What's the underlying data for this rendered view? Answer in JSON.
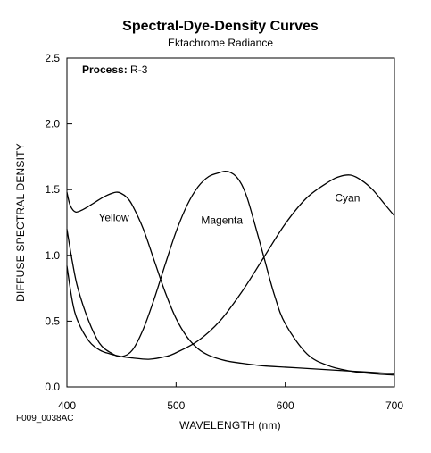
{
  "chart_data": {
    "type": "line",
    "title": "Spectral-Dye-Density Curves",
    "subtitle": "Ektachrome Radiance",
    "annotation": {
      "label": "Process:",
      "value": " R-3"
    },
    "xlabel": "WAVELENGTH (nm)",
    "ylabel": "DIFFUSE SPECTRAL DENSITY",
    "xlim": [
      400,
      700
    ],
    "ylim": [
      0.0,
      2.5
    ],
    "x_ticks": [
      400,
      500,
      600,
      700
    ],
    "y_ticks": [
      0.0,
      0.5,
      1.0,
      1.5,
      2.0,
      2.5
    ],
    "x_tick_labels": [
      "400",
      "500",
      "600",
      "700"
    ],
    "y_tick_labels": [
      "0.0",
      "0.5",
      "1.0",
      "1.5",
      "2.0",
      "2.5"
    ],
    "grid": false,
    "figure_code": "F009_0038AC",
    "series": [
      {
        "name": "Yellow",
        "color": "#000000",
        "x": [
          400,
          403,
          408,
          415,
          425,
          435,
          445,
          450,
          455,
          460,
          470,
          480,
          490,
          500,
          510,
          520,
          530,
          545,
          560,
          580,
          600,
          620,
          640,
          660,
          680,
          700
        ],
        "y": [
          1.48,
          1.38,
          1.33,
          1.35,
          1.4,
          1.45,
          1.48,
          1.47,
          1.44,
          1.38,
          1.2,
          0.96,
          0.72,
          0.52,
          0.38,
          0.29,
          0.24,
          0.2,
          0.18,
          0.16,
          0.15,
          0.14,
          0.13,
          0.12,
          0.11,
          0.1
        ]
      },
      {
        "name": "Magenta",
        "color": "#000000",
        "x": [
          400,
          405,
          410,
          420,
          430,
          440,
          450,
          460,
          470,
          480,
          490,
          500,
          510,
          520,
          530,
          540,
          545,
          550,
          555,
          560,
          565,
          570,
          580,
          590,
          600,
          620,
          640,
          660,
          680,
          700
        ],
        "y": [
          1.2,
          0.95,
          0.75,
          0.5,
          0.33,
          0.26,
          0.23,
          0.28,
          0.44,
          0.67,
          0.93,
          1.18,
          1.38,
          1.52,
          1.6,
          1.63,
          1.64,
          1.63,
          1.6,
          1.54,
          1.44,
          1.3,
          1.0,
          0.7,
          0.48,
          0.25,
          0.16,
          0.12,
          0.1,
          0.09
        ]
      },
      {
        "name": "Cyan",
        "color": "#000000",
        "x": [
          400,
          405,
          410,
          420,
          430,
          440,
          450,
          460,
          475,
          490,
          500,
          520,
          540,
          560,
          580,
          600,
          620,
          640,
          650,
          660,
          670,
          680,
          690,
          700
        ],
        "y": [
          0.92,
          0.65,
          0.5,
          0.35,
          0.28,
          0.25,
          0.23,
          0.22,
          0.21,
          0.23,
          0.26,
          0.35,
          0.5,
          0.72,
          0.98,
          1.24,
          1.44,
          1.56,
          1.6,
          1.61,
          1.57,
          1.5,
          1.4,
          1.3
        ]
      }
    ],
    "series_labels": [
      {
        "name": "Yellow",
        "x": 443,
        "y": 1.26
      },
      {
        "name": "Magenta",
        "x": 542,
        "y": 1.24
      },
      {
        "name": "Cyan",
        "x": 657,
        "y": 1.41
      }
    ]
  }
}
